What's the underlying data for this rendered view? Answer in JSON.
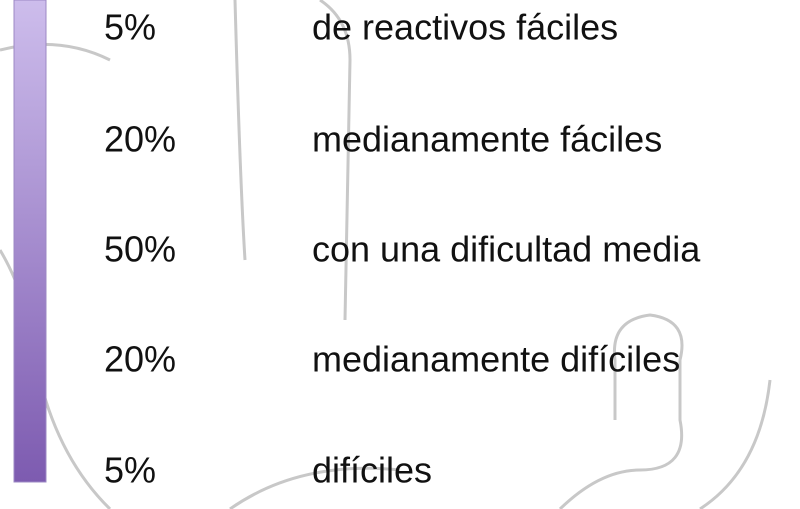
{
  "rows": [
    {
      "percent": "5%",
      "label": "de reactivos fáciles"
    },
    {
      "percent": "20%",
      "label": "medianamente fáciles"
    },
    {
      "percent": "50%",
      "label": "con una dificultad media"
    },
    {
      "percent": "20%",
      "label": "medianamente difíciles"
    },
    {
      "percent": "5%",
      "label": "difíciles"
    }
  ]
}
